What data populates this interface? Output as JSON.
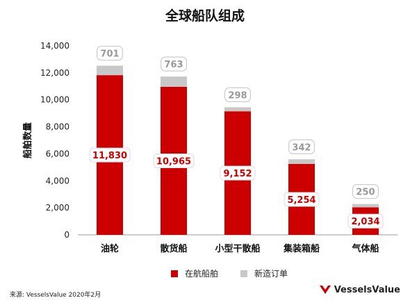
{
  "title": "全球船队组成",
  "source": "来源: VesselsValue 2020年2月",
  "brand": "VesselsValue",
  "colors": {
    "in_service": "#cc0000",
    "new_orders": "#c8c8c8",
    "accent": "#cc0000"
  },
  "chart_data": {
    "type": "bar",
    "stacked": true,
    "title": "全球船队组成",
    "xlabel": "",
    "ylabel": "船舶数量",
    "ylim": [
      0,
      14000
    ],
    "yticks": [
      "0",
      "2,000",
      "4,000",
      "6,000",
      "8,000",
      "10,000",
      "12,000",
      "14,000"
    ],
    "categories": [
      "油轮",
      "散货船",
      "小型干散船",
      "集装箱船",
      "气体船"
    ],
    "series": [
      {
        "name": "在航船舶",
        "values": [
          11830,
          10965,
          9152,
          5254,
          2034
        ],
        "labels": [
          "11,830",
          "10,965",
          "9,152",
          "5,254",
          "2,034"
        ]
      },
      {
        "name": "新造订单",
        "values": [
          701,
          763,
          298,
          342,
          250
        ],
        "labels": [
          "701",
          "763",
          "298",
          "342",
          "250"
        ]
      }
    ],
    "legend_position": "bottom",
    "grid": false
  }
}
